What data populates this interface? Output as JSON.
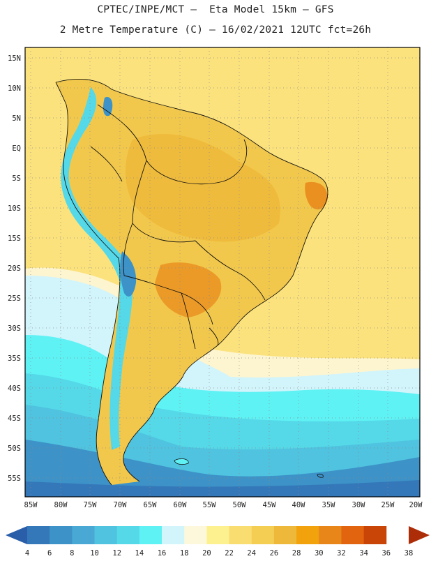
{
  "header": {
    "line1": "CPTEC/INPE/MCT –  Eta Model 15km – GFS",
    "line2": "2 Metre Temperature (C) – 16/02/2021 12UTC fct=26h"
  },
  "axes": {
    "lat_labels": [
      "15N",
      "10N",
      "5N",
      "EQ",
      "5S",
      "10S",
      "15S",
      "20S",
      "25S",
      "30S",
      "35S",
      "40S",
      "45S",
      "50S",
      "55S"
    ],
    "lon_labels": [
      "85W",
      "80W",
      "75W",
      "70W",
      "65W",
      "60W",
      "55W",
      "50W",
      "45W",
      "40W",
      "35W",
      "30W",
      "25W",
      "20W"
    ]
  },
  "legend": {
    "values": [
      "4",
      "6",
      "8",
      "10",
      "12",
      "14",
      "16",
      "18",
      "20",
      "22",
      "24",
      "26",
      "28",
      "30",
      "32",
      "34",
      "36",
      "38"
    ],
    "colors": [
      "#2a5ea9",
      "#3478ba",
      "#3d92c7",
      "#49a8d4",
      "#4fc3df",
      "#55d8e8",
      "#5ef2f4",
      "#d2f4fb",
      "#fdf8dc",
      "#fdf08f",
      "#f9dd70",
      "#f4cd53",
      "#eeb83a",
      "#f2a20c",
      "#e8861a",
      "#e2640e",
      "#c94507",
      "#ad2d09"
    ]
  },
  "map": {
    "field": "2 Metre Temperature",
    "units": "C",
    "region": "South America"
  }
}
